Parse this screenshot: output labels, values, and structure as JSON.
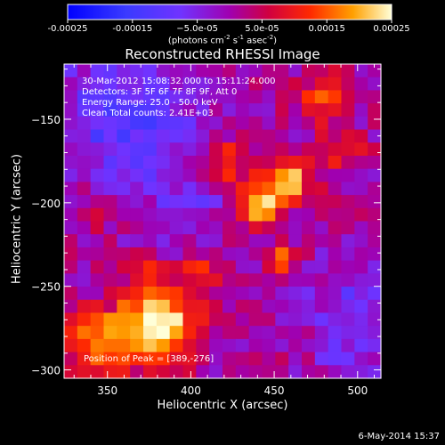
{
  "chart_data": {
    "type": "heatmap",
    "title": "Reconstructed RHESSI Image",
    "xlabel": "Heliocentric X (arcsec)",
    "ylabel": "Heliocentric Y (arcsec)",
    "xlim": [
      324,
      514
    ],
    "ylim": [
      -305,
      -117
    ],
    "x_ticks": [
      350,
      400,
      450,
      500
    ],
    "y_ticks": [
      -150,
      -200,
      -250,
      -300
    ],
    "colorbar": {
      "range": [
        -0.00025,
        0.00025
      ],
      "tick_values": [
        -0.00025,
        -0.00015,
        -5e-05,
        5e-05,
        0.00015,
        0.00025
      ],
      "tick_labels": [
        "-0.00025",
        "-0.00015",
        "−5.0e-05",
        "5.0e-05",
        "0.00015",
        "0.00025"
      ],
      "units_main": "(photons cm",
      "units_exp1": "-2",
      "units_mid1": " s",
      "units_exp2": "-1",
      "units_mid2": " asec",
      "units_exp3": "-2",
      "units_end": ")"
    },
    "info_lines": [
      "30-Mar-2012 15:08:32.000 to 15:11:24.000",
      "Detectors: 3F 5F 6F 7F 8F 9F, Att 0",
      "Energy Range: 25.0 - 50.0 keV",
      "Clean     Total counts: 2.41E+03"
    ],
    "peak_label": "Position of Peak = [389,-276]",
    "timestamp": "6-May-2014 15:37",
    "colors": {
      "background": "#000000",
      "text": "#ffffff",
      "axis": "#ffffff"
    },
    "intensity_image": {
      "description_units": "relative flux (colorbar units)",
      "x_bins": 24,
      "y_bins": 24,
      "sources": [
        {
          "x": 381,
          "y": -271,
          "sigma": 16,
          "peak": 0.00025
        },
        {
          "x": 345,
          "y": -285,
          "sigma": 14,
          "peak": 0.00018
        },
        {
          "x": 440,
          "y": -199,
          "sigma": 10,
          "peak": 0.00022
        },
        {
          "x": 461,
          "y": -186,
          "sigma": 9,
          "peak": 0.00018
        },
        {
          "x": 457,
          "y": -233,
          "sigma": 6,
          "peak": 0.00015
        },
        {
          "x": 420,
          "y": -175,
          "sigma": 10,
          "peak": 0.00012
        },
        {
          "x": 480,
          "y": -137,
          "sigma": 10,
          "peak": 0.00014
        },
        {
          "x": 490,
          "y": -170,
          "sigma": 9,
          "peak": 0.0001
        },
        {
          "x": 407,
          "y": -243,
          "sigma": 9,
          "peak": 0.0001
        },
        {
          "x": 343,
          "y": -205,
          "sigma": 8,
          "peak": 8e-05
        },
        {
          "x": 372,
          "y": -240,
          "sigma": 8,
          "peak": 6e-05
        }
      ],
      "negative_regions": [
        {
          "x": 360,
          "y": -150,
          "sigma": 28,
          "depth": -0.00013
        },
        {
          "x": 400,
          "y": -200,
          "sigma": 18,
          "depth": -6e-05
        },
        {
          "x": 500,
          "y": -260,
          "sigma": 20,
          "depth": -8e-05
        },
        {
          "x": 495,
          "y": -300,
          "sigma": 15,
          "depth": -5e-05
        }
      ]
    }
  }
}
